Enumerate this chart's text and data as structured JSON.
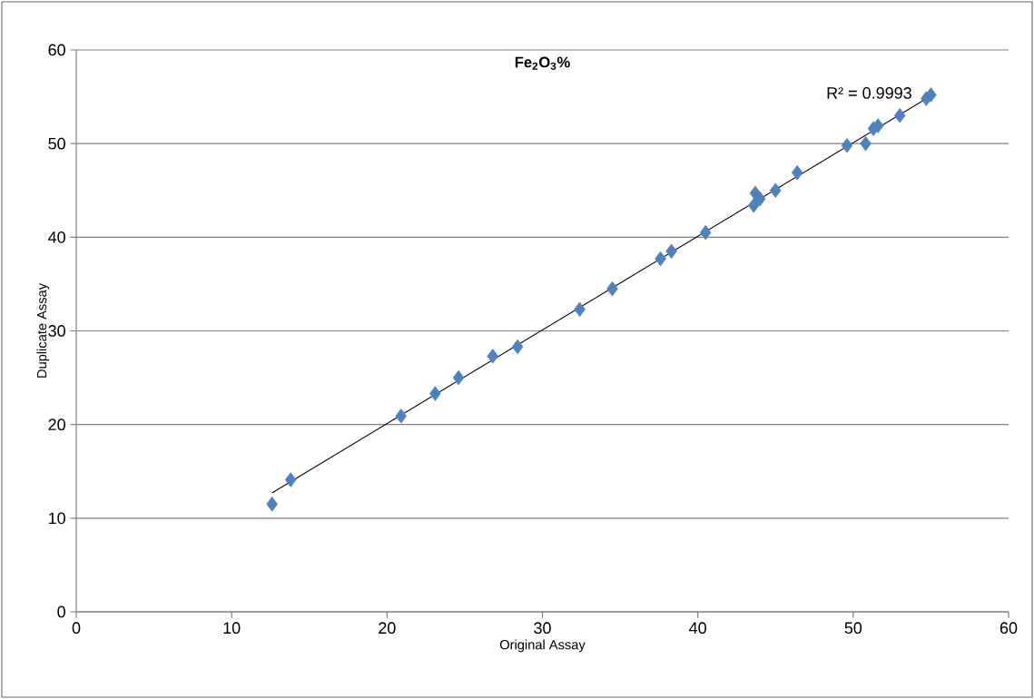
{
  "chart_data": {
    "type": "scatter",
    "title": "Fe$_{2}$O$_{3}$%",
    "xlabel": "Original Assay",
    "ylabel": "Duplicate Assay",
    "xlim": [
      0,
      60
    ],
    "ylim": [
      0,
      60
    ],
    "xticks": [
      0,
      10,
      20,
      30,
      40,
      50,
      60
    ],
    "yticks": [
      0,
      10,
      20,
      30,
      40,
      50,
      60
    ],
    "grid": "y",
    "marker": "diamond",
    "annotations": [
      {
        "text": "R² = 0.9993",
        "x": 55.0,
        "y": 55.1
      }
    ],
    "series": [
      {
        "color": "#4f81bd",
        "x": [
          12.6,
          13.8,
          20.9,
          23.1,
          24.6,
          26.8,
          28.4,
          32.4,
          34.5,
          37.6,
          38.3,
          40.5,
          43.6,
          43.7,
          44.0,
          45.0,
          46.4,
          49.6,
          50.8,
          51.3,
          51.6,
          53.0,
          54.7,
          55.0
        ],
        "values": [
          11.5,
          14.1,
          20.9,
          23.3,
          25.0,
          27.3,
          28.3,
          32.3,
          34.5,
          37.7,
          38.5,
          40.5,
          43.4,
          44.7,
          44.1,
          45.0,
          46.9,
          49.8,
          50.0,
          51.6,
          51.9,
          53.0,
          54.8,
          55.2
        ]
      },
      {
        "type": "line",
        "color": "#000000",
        "marker": "none",
        "x": [
          12.6,
          55.0
        ],
        "values": [
          12.7,
          55.1
        ]
      }
    ]
  }
}
